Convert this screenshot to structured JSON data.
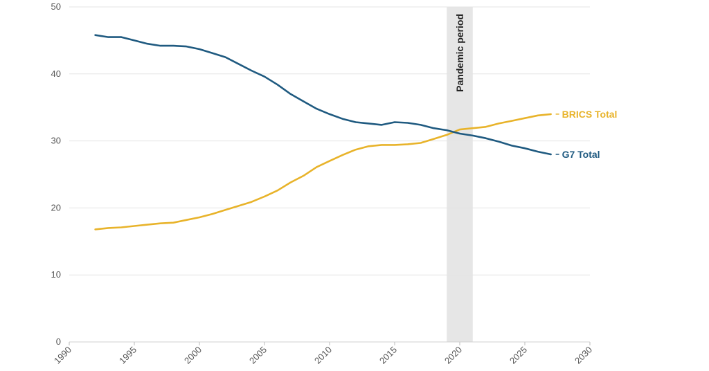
{
  "chart_data": {
    "type": "line",
    "xlim": [
      1990,
      2030
    ],
    "ylim": [
      0,
      50
    ],
    "x_ticks": [
      "1990",
      "1995",
      "2000",
      "2005",
      "2010",
      "2015",
      "2020",
      "2025",
      "2030"
    ],
    "y_ticks": [
      "0",
      "10",
      "20",
      "30",
      "40",
      "50"
    ],
    "grid": true,
    "shaded_band": {
      "label": "Pandemic period",
      "x_start": 2019,
      "x_end": 2021,
      "color": "#e6e6e6"
    },
    "series": [
      {
        "name": "BRICS Total",
        "color": "#e8b32a",
        "points": [
          [
            1992,
            16.8
          ],
          [
            1993,
            17.0
          ],
          [
            1994,
            17.1
          ],
          [
            1995,
            17.3
          ],
          [
            1996,
            17.5
          ],
          [
            1997,
            17.7
          ],
          [
            1998,
            17.8
          ],
          [
            1999,
            18.2
          ],
          [
            2000,
            18.6
          ],
          [
            2001,
            19.1
          ],
          [
            2002,
            19.7
          ],
          [
            2003,
            20.3
          ],
          [
            2004,
            20.9
          ],
          [
            2005,
            21.7
          ],
          [
            2006,
            22.6
          ],
          [
            2007,
            23.8
          ],
          [
            2008,
            24.8
          ],
          [
            2009,
            26.1
          ],
          [
            2010,
            27.0
          ],
          [
            2011,
            27.9
          ],
          [
            2012,
            28.7
          ],
          [
            2013,
            29.2
          ],
          [
            2014,
            29.4
          ],
          [
            2015,
            29.4
          ],
          [
            2016,
            29.5
          ],
          [
            2017,
            29.7
          ],
          [
            2018,
            30.3
          ],
          [
            2019,
            30.9
          ],
          [
            2020,
            31.7
          ],
          [
            2021,
            31.9
          ],
          [
            2022,
            32.1
          ],
          [
            2023,
            32.6
          ],
          [
            2024,
            33.0
          ],
          [
            2025,
            33.4
          ],
          [
            2026,
            33.8
          ],
          [
            2027,
            34.0
          ]
        ]
      },
      {
        "name": "G7 Total",
        "color": "#1f5a80",
        "points": [
          [
            1992,
            45.8
          ],
          [
            1993,
            45.5
          ],
          [
            1994,
            45.5
          ],
          [
            1995,
            45.0
          ],
          [
            1996,
            44.5
          ],
          [
            1997,
            44.2
          ],
          [
            1998,
            44.2
          ],
          [
            1999,
            44.1
          ],
          [
            2000,
            43.7
          ],
          [
            2001,
            43.1
          ],
          [
            2002,
            42.5
          ],
          [
            2003,
            41.5
          ],
          [
            2004,
            40.5
          ],
          [
            2005,
            39.6
          ],
          [
            2006,
            38.4
          ],
          [
            2007,
            37.0
          ],
          [
            2008,
            35.9
          ],
          [
            2009,
            34.8
          ],
          [
            2010,
            34.0
          ],
          [
            2011,
            33.3
          ],
          [
            2012,
            32.8
          ],
          [
            2013,
            32.6
          ],
          [
            2014,
            32.4
          ],
          [
            2015,
            32.8
          ],
          [
            2016,
            32.7
          ],
          [
            2017,
            32.4
          ],
          [
            2018,
            31.9
          ],
          [
            2019,
            31.6
          ],
          [
            2020,
            31.1
          ],
          [
            2021,
            30.8
          ],
          [
            2022,
            30.4
          ],
          [
            2023,
            29.9
          ],
          [
            2024,
            29.3
          ],
          [
            2025,
            28.9
          ],
          [
            2026,
            28.4
          ],
          [
            2027,
            28.0
          ]
        ]
      }
    ]
  }
}
